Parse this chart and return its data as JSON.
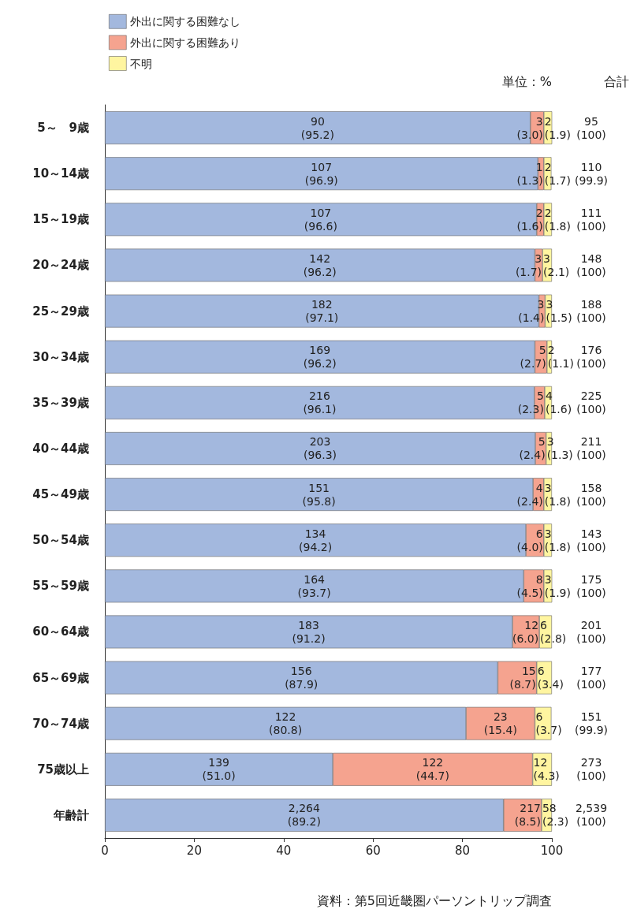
{
  "chart_data": {
    "type": "bar",
    "orientation": "horizontal",
    "stacked": true,
    "categories": [
      "5～　9歳",
      "10～14歳",
      "15～19歳",
      "20～24歳",
      "25～29歳",
      "30～34歳",
      "35～39歳",
      "40～44歳",
      "45～49歳",
      "50～54歳",
      "55～59歳",
      "60～64歳",
      "65～69歳",
      "70～74歳",
      "75歳以上",
      "年齢計"
    ],
    "series": [
      {
        "name": "外出に関する困難なし",
        "color": "#a3b8de",
        "values": [
          95.2,
          96.9,
          96.6,
          96.2,
          97.1,
          96.2,
          96.1,
          96.3,
          95.8,
          94.2,
          93.7,
          91.2,
          87.9,
          80.8,
          51.0,
          89.2
        ],
        "value_labels": [
          "90\n(95.2)",
          "107\n(96.9)",
          "107\n(96.6)",
          "142\n(96.2)",
          "182\n(97.1)",
          "169\n(96.2)",
          "216\n(96.1)",
          "203\n(96.3)",
          "151\n(95.8)",
          "134\n(94.2)",
          "164\n(93.7)",
          "183\n(91.2)",
          "156\n(87.9)",
          "122\n(80.8)",
          "139\n(51.0)",
          "2,264\n(89.2)"
        ]
      },
      {
        "name": "外出に関する困難あり",
        "color": "#f5a38f",
        "values": [
          3.0,
          1.3,
          1.6,
          1.7,
          1.4,
          2.7,
          2.3,
          2.4,
          2.4,
          4.0,
          4.5,
          6.0,
          8.7,
          15.4,
          44.7,
          8.5
        ],
        "value_labels": [
          "3\n(3.0)",
          "1\n(1.3)",
          "2\n(1.6)",
          "3\n(1.7)",
          "3\n(1.4)",
          "5\n(2.7)",
          "5\n(2.3)",
          "5\n(2.4)",
          "4\n(2.4)",
          "6\n(4.0)",
          "8\n(4.5)",
          "12\n(6.0)",
          "15\n(8.7)",
          "23\n(15.4)",
          "122\n(44.7)",
          "217\n(8.5)"
        ]
      },
      {
        "name": "不明",
        "color": "#fff5a0",
        "values": [
          1.9,
          1.7,
          1.8,
          2.1,
          1.5,
          1.1,
          1.6,
          1.3,
          1.8,
          1.8,
          1.9,
          2.8,
          3.4,
          3.7,
          4.3,
          2.3
        ],
        "value_labels": [
          "2\n(1.9)",
          "2\n(1.7)",
          "2\n(1.8)",
          "3\n(2.1)",
          "3\n(1.5)",
          "2\n(1.1)",
          "4\n(1.6)",
          "3\n(1.3)",
          "3\n(1.8)",
          "3\n(1.8)",
          "3\n(1.9)",
          "6\n(2.8)",
          "6\n(3.4)",
          "6\n(3.7)",
          "12\n(4.3)",
          "58\n(2.3)"
        ]
      }
    ],
    "totals": [
      "95\n(100)",
      "110\n(99.9)",
      "111\n(100)",
      "148\n(100)",
      "188\n(100)",
      "176\n(100)",
      "225\n(100)",
      "211\n(100)",
      "158\n(100)",
      "143\n(100)",
      "175\n(100)",
      "201\n(100)",
      "177\n(100)",
      "151\n(99.9)",
      "273\n(100)",
      "2,539\n(100)"
    ],
    "xlim": [
      0,
      100
    ],
    "xticks": [
      0,
      20,
      40,
      60,
      80,
      100
    ],
    "grid": false,
    "legend": "top left",
    "annotations": [
      "単位：%",
      "合計",
      "資料：第5回近畿圏パーソントリップ調査"
    ]
  }
}
